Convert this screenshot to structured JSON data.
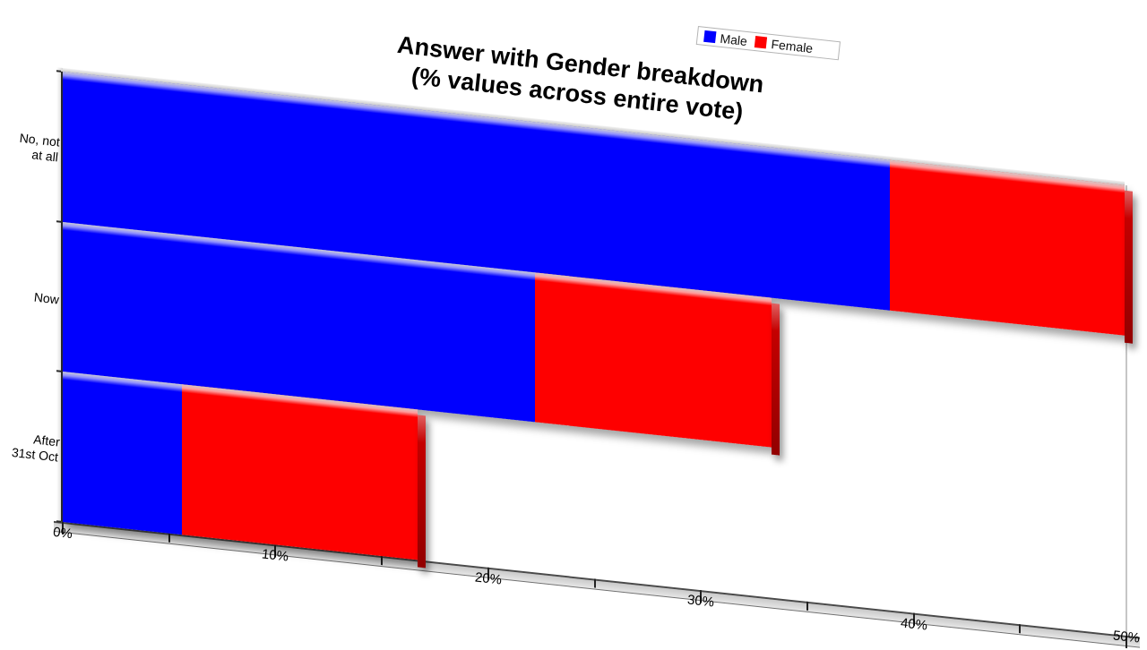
{
  "title": {
    "line1": "Answer with Gender breakdown",
    "line2": "(% values across entire vote)"
  },
  "legend": {
    "items": [
      {
        "label": "Male",
        "color": "#0000fe"
      },
      {
        "label": "Female",
        "color": "#fe0000"
      }
    ],
    "position": "top-right"
  },
  "chart_data": {
    "type": "bar",
    "orientation": "horizontal",
    "stacked": true,
    "projection": "3d-oblique-skew",
    "title": "Answer with Gender breakdown (% values across entire vote)",
    "categories": [
      "No, not at all",
      "Now",
      "After 31st Oct"
    ],
    "category_label_lines": [
      [
        "No, not",
        "at all"
      ],
      [
        "Now"
      ],
      [
        "After",
        "31st Oct"
      ]
    ],
    "series": [
      {
        "name": "Male",
        "color": "#0000fe",
        "values": [
          38.9,
          22.2,
          5.6
        ]
      },
      {
        "name": "Female",
        "color": "#fe0000",
        "values": [
          11.0,
          11.1,
          11.1
        ]
      }
    ],
    "totals": [
      49.9,
      33.3,
      16.7
    ],
    "xlabel": "",
    "ylabel": "",
    "xlim": [
      0,
      50
    ],
    "x_tick_labels": [
      "0%",
      "10%",
      "20%",
      "30%",
      "40%",
      "50%"
    ],
    "x_tick_values": [
      0,
      10,
      20,
      30,
      40,
      50
    ],
    "x_minor_tick_values": [
      5,
      15,
      25,
      35,
      45
    ],
    "grid": false,
    "legend_position": "top-right",
    "colors": {
      "male_face": "#0000fe",
      "female_face": "#fe0000",
      "female_side": "#a40000",
      "axis_strip": "#d2d2d2",
      "background": "#ffffff"
    }
  }
}
